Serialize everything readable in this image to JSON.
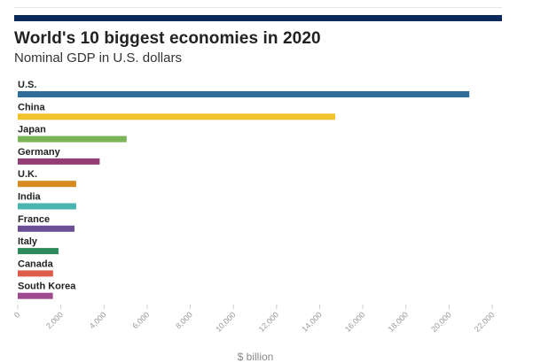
{
  "colors": {
    "accent_bar": "#0b2a5b"
  },
  "chart_data": {
    "type": "bar",
    "orientation": "horizontal",
    "title": "World's 10 biggest economies in 2020",
    "subtitle": "Nominal GDP in U.S. dollars",
    "xlabel": "$ billion",
    "ylabel": "",
    "xlim": [
      0,
      22000
    ],
    "xticks": [
      0,
      2000,
      4000,
      6000,
      8000,
      10000,
      12000,
      14000,
      16000,
      18000,
      20000,
      22000
    ],
    "xtick_labels": [
      "0",
      "2,000",
      "4,000",
      "6,000",
      "8,000",
      "10,000",
      "12,000",
      "14,000",
      "16,000",
      "18,000",
      "20,000",
      "22,000"
    ],
    "grid": false,
    "legend": false,
    "categories": [
      "U.S.",
      "China",
      "Japan",
      "Germany",
      "U.K.",
      "India",
      "France",
      "Italy",
      "Canada",
      "South Korea"
    ],
    "values": [
      20940,
      14720,
      5050,
      3800,
      2710,
      2710,
      2630,
      1890,
      1640,
      1630
    ],
    "bar_colors": [
      "#2e6e98",
      "#f2c12e",
      "#7ab456",
      "#943e76",
      "#d68a1f",
      "#49b5b0",
      "#6a4e96",
      "#2e8a5a",
      "#dd5d4a",
      "#9e4a8e"
    ]
  }
}
